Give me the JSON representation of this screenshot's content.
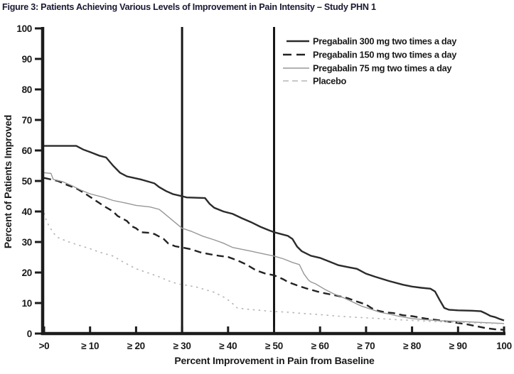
{
  "figure": {
    "title": "Figure 3: Patients Achieving Various Levels of Improvement in Pain Intensity – Study PHN 1"
  },
  "chart_data": {
    "type": "line",
    "title": "Figure 3: Patients Achieving Various Levels of Improvement in Pain Intensity – Study PHN 1",
    "xlabel": "Percent Improvement in Pain from Baseline",
    "ylabel": "Percent of Patients Improved",
    "xlim": [
      0,
      100
    ],
    "ylim": [
      0,
      100
    ],
    "grid": false,
    "legend_position": "top-right-inside",
    "x_ticks": [
      0,
      10,
      20,
      30,
      40,
      50,
      60,
      70,
      80,
      90,
      100
    ],
    "x_tick_labels": [
      ">0",
      "≥ 10",
      "≥ 20",
      "≥ 30",
      "≥ 40",
      "≥ 50",
      "≥ 60",
      "≥ 70",
      "≥ 80",
      "≥ 90",
      "100"
    ],
    "y_ticks": [
      0,
      10,
      20,
      30,
      40,
      50,
      60,
      70,
      80,
      90,
      100
    ],
    "reference_lines_x": [
      30,
      50
    ],
    "axis_color": "#1c1c1c",
    "series": [
      {
        "name": "Pregabalin 300 mg two times a day",
        "style": "solid",
        "color": "#2b2b2b",
        "width": 2.4,
        "dash": "",
        "points": [
          [
            0,
            61.5
          ],
          [
            7,
            61.5
          ],
          [
            8.5,
            60.3
          ],
          [
            10,
            59.5
          ],
          [
            12,
            58.3
          ],
          [
            13.5,
            57.7
          ],
          [
            15,
            55
          ],
          [
            16.5,
            52.7
          ],
          [
            18,
            51.5
          ],
          [
            21,
            50.5
          ],
          [
            24,
            49.2
          ],
          [
            25,
            48
          ],
          [
            26.5,
            46.7
          ],
          [
            28,
            45.7
          ],
          [
            30,
            45
          ],
          [
            31,
            44.6
          ],
          [
            35,
            44.4
          ],
          [
            36,
            42.5
          ],
          [
            37,
            41.2
          ],
          [
            39,
            40
          ],
          [
            41,
            39.2
          ],
          [
            43,
            37.8
          ],
          [
            45,
            36.5
          ],
          [
            47,
            35
          ],
          [
            49,
            33.8
          ],
          [
            50,
            33.2
          ],
          [
            53,
            32
          ],
          [
            54,
            31
          ],
          [
            55,
            28.5
          ],
          [
            56,
            27
          ],
          [
            58,
            25.5
          ],
          [
            60,
            24.8
          ],
          [
            62,
            23.6
          ],
          [
            64,
            22.4
          ],
          [
            66,
            21.8
          ],
          [
            68,
            21.2
          ],
          [
            70,
            19.6
          ],
          [
            72,
            18.6
          ],
          [
            75,
            17.2
          ],
          [
            78,
            16
          ],
          [
            80,
            15.4
          ],
          [
            82,
            15
          ],
          [
            84,
            14.7
          ],
          [
            85,
            13.8
          ],
          [
            86,
            11
          ],
          [
            87,
            8.4
          ],
          [
            88,
            7.8
          ],
          [
            90,
            7.6
          ],
          [
            93,
            7.5
          ],
          [
            95,
            7.3
          ],
          [
            96,
            6.6
          ],
          [
            97,
            5.8
          ],
          [
            98,
            5.4
          ],
          [
            99,
            4.8
          ],
          [
            100,
            4.3
          ]
        ]
      },
      {
        "name": "Pregabalin 150 mg two times a day",
        "style": "dashed",
        "color": "#222222",
        "width": 2.4,
        "dash": "10 6",
        "points": [
          [
            0,
            51
          ],
          [
            3,
            50
          ],
          [
            5,
            48.7
          ],
          [
            7,
            47.6
          ],
          [
            9,
            45.8
          ],
          [
            11,
            43.8
          ],
          [
            13,
            41.8
          ],
          [
            15,
            40
          ],
          [
            16,
            38.5
          ],
          [
            18,
            36.9
          ],
          [
            19,
            35.2
          ],
          [
            20,
            34.5
          ],
          [
            21,
            33.2
          ],
          [
            23,
            33
          ],
          [
            24,
            32.6
          ],
          [
            26,
            31
          ],
          [
            27,
            29.5
          ],
          [
            28.5,
            28.6
          ],
          [
            30,
            28.2
          ],
          [
            32,
            27.6
          ],
          [
            34,
            26.6
          ],
          [
            36,
            26
          ],
          [
            38,
            25.5
          ],
          [
            40,
            25.1
          ],
          [
            42,
            24
          ],
          [
            44,
            22.6
          ],
          [
            46,
            20.8
          ],
          [
            48,
            19.7
          ],
          [
            50,
            19.1
          ],
          [
            52,
            17.8
          ],
          [
            53,
            16.9
          ],
          [
            55,
            15.8
          ],
          [
            57,
            14.8
          ],
          [
            60,
            13.5
          ],
          [
            62,
            12.9
          ],
          [
            64,
            12.3
          ],
          [
            66,
            11.6
          ],
          [
            68,
            10.5
          ],
          [
            70,
            9.5
          ],
          [
            71,
            8.5
          ],
          [
            72,
            7.7
          ],
          [
            74,
            7
          ],
          [
            76,
            6.7
          ],
          [
            78,
            6
          ],
          [
            80,
            5.7
          ],
          [
            83,
            4.9
          ],
          [
            86,
            4.3
          ],
          [
            89,
            3.7
          ],
          [
            92,
            3
          ],
          [
            94,
            2.4
          ],
          [
            96,
            1.8
          ],
          [
            98,
            1.4
          ],
          [
            100,
            1.2
          ]
        ]
      },
      {
        "name": "Pregabalin 75 mg two times a day",
        "style": "solid",
        "color": "#979797",
        "width": 1.4,
        "dash": "",
        "points": [
          [
            0,
            52.7
          ],
          [
            1.5,
            52.5
          ],
          [
            2,
            50.5
          ],
          [
            4,
            49.8
          ],
          [
            6,
            48.5
          ],
          [
            8,
            47
          ],
          [
            10,
            45.8
          ],
          [
            13,
            44.6
          ],
          [
            15,
            43.6
          ],
          [
            18,
            42.7
          ],
          [
            20,
            42
          ],
          [
            23,
            41.5
          ],
          [
            25,
            40.7
          ],
          [
            26,
            39.5
          ],
          [
            28,
            37
          ],
          [
            30,
            34.5
          ],
          [
            32,
            33.5
          ],
          [
            34.5,
            31.9
          ],
          [
            37,
            30.7
          ],
          [
            39,
            29.6
          ],
          [
            41,
            28.2
          ],
          [
            43,
            27.6
          ],
          [
            45,
            27
          ],
          [
            48,
            26
          ],
          [
            50,
            25.4
          ],
          [
            52,
            24.5
          ],
          [
            54,
            23.3
          ],
          [
            55.5,
            22.6
          ],
          [
            56.5,
            19.5
          ],
          [
            57.5,
            17.5
          ],
          [
            58,
            16.9
          ],
          [
            59,
            16.3
          ],
          [
            61,
            14.5
          ],
          [
            63,
            13
          ],
          [
            65,
            11.8
          ],
          [
            67,
            10.4
          ],
          [
            69,
            9
          ],
          [
            71,
            8
          ],
          [
            73,
            7
          ],
          [
            75,
            6.4
          ],
          [
            77,
            5.7
          ],
          [
            80,
            4.9
          ],
          [
            83,
            4.5
          ],
          [
            86,
            4.2
          ],
          [
            90,
            4
          ],
          [
            94,
            3.7
          ],
          [
            100,
            3.3
          ]
        ]
      },
      {
        "name": "Placebo",
        "style": "dash-dot",
        "color": "#b5b5b5",
        "width": 1.6,
        "dash": "2.5 5.5",
        "points": [
          [
            0,
            39.5
          ],
          [
            0.5,
            37
          ],
          [
            1,
            35.5
          ],
          [
            2,
            33
          ],
          [
            3,
            31.5
          ],
          [
            5,
            30.2
          ],
          [
            7,
            29.2
          ],
          [
            10,
            27.8
          ],
          [
            12,
            26.7
          ],
          [
            15,
            25.4
          ],
          [
            17,
            23.6
          ],
          [
            20,
            21.2
          ],
          [
            22,
            20.2
          ],
          [
            25,
            18.6
          ],
          [
            27,
            17.3
          ],
          [
            29,
            16.3
          ],
          [
            31,
            15.8
          ],
          [
            33,
            15.3
          ],
          [
            35,
            14.4
          ],
          [
            37,
            13.5
          ],
          [
            39,
            12
          ],
          [
            40,
            11
          ],
          [
            41,
            9.8
          ],
          [
            42,
            8.4
          ],
          [
            44,
            8
          ],
          [
            47,
            7.6
          ],
          [
            50,
            7.2
          ],
          [
            53,
            7
          ],
          [
            56,
            6.6
          ],
          [
            60,
            6.2
          ],
          [
            64,
            5.7
          ],
          [
            68,
            5.3
          ],
          [
            72,
            5
          ],
          [
            76,
            4.6
          ],
          [
            80,
            4.3
          ],
          [
            84,
            4
          ],
          [
            88,
            3.8
          ],
          [
            92,
            3.6
          ],
          [
            96,
            3.4
          ],
          [
            100,
            3.2
          ]
        ]
      }
    ]
  }
}
